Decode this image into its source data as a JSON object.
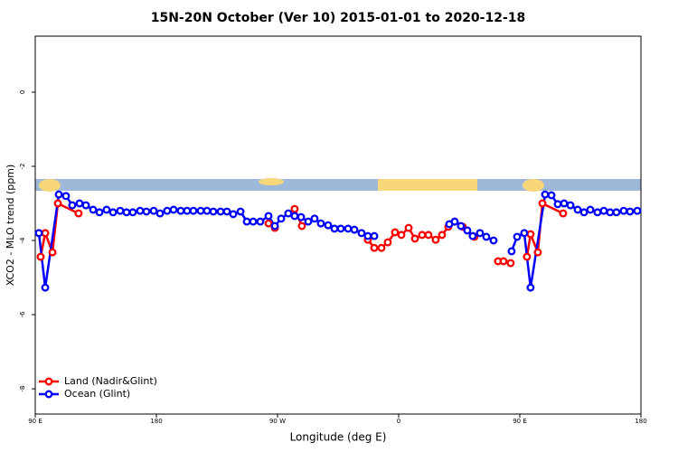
{
  "chart_data": {
    "type": "line",
    "title": "15N-20N October (Ver 10)   2015-01-01 to 2020-12-18",
    "x_label": "Longitude (deg E)",
    "y_label": "XCO2 - MLO trend (ppm)",
    "xlim": [
      90,
      540
    ],
    "xticks": [
      {
        "value": 90,
        "label": "90 E"
      },
      {
        "value": 180,
        "label": "180"
      },
      {
        "value": 270,
        "label": "90 W"
      },
      {
        "value": 360,
        "label": "0"
      },
      {
        "value": 450,
        "label": "90 E"
      },
      {
        "value": 540,
        "label": "180"
      }
    ],
    "ylim": [
      -8.68,
      1.51
    ],
    "yticks": [
      0,
      -2,
      -4,
      -6,
      -8
    ],
    "legend": "bottom-left",
    "series": [
      {
        "name": "Land (Nadir&Glint)",
        "color": "#ff0000",
        "x": [
          94,
          97.4,
          102.8,
          106.8,
          122.2,
          null,
          263.3,
          268,
          null,
          282.7,
          288.1,
          null,
          337.1,
          341.9,
          347.2,
          351.9,
          357.3,
          362,
          367.4,
          372.1,
          377.4,
          382.1,
          387.5,
          392.2,
          396.9,
          401.6,
          407.6,
          416.3,
          null,
          433.8,
          437.9,
          443.2,
          null,
          455.3,
          458,
          463.4,
          466.8,
          482.2
        ],
        "values": [
          -4.44,
          -3.8,
          -4.32,
          -3.0,
          -3.27,
          null,
          -3.54,
          -3.66,
          null,
          -3.15,
          -3.61,
          null,
          -3.98,
          -4.2,
          -4.2,
          -4.05,
          -3.78,
          -3.85,
          -3.66,
          -3.95,
          -3.85,
          -3.85,
          -3.98,
          -3.85,
          -3.63,
          -3.49,
          -3.63,
          -3.9,
          null,
          -4.56,
          -4.56,
          -4.61,
          null,
          -4.44,
          -3.83,
          -4.32,
          -3.0,
          -3.27
        ]
      },
      {
        "name": "Ocean (Glint)",
        "color": "#0000ff",
        "x": [
          92.7,
          97.4,
          107.5,
          112.8,
          117.5,
          122.9,
          127.6,
          133,
          137.7,
          143,
          147.8,
          153.1,
          157.8,
          162.5,
          167.9,
          172.6,
          178,
          182.7,
          188,
          192.8,
          198.1,
          202.8,
          207.5,
          212.9,
          217.6,
          222.3,
          227.7,
          232.4,
          237.1,
          242.5,
          247.2,
          251.9,
          257.2,
          263.3,
          268,
          272.7,
          278,
          282.7,
          287.5,
          292.8,
          297.5,
          302.2,
          307.6,
          312.3,
          317,
          322.4,
          327.1,
          332.4,
          337.1,
          341.9,
          null,
          397.6,
          401.6,
          406.3,
          411,
          415,
          420.4,
          425.1,
          430.5,
          null,
          443.9,
          448,
          453.3,
          458,
          468.8,
          473.5,
          478.2,
          482.9,
          487.6,
          493,
          497.7,
          502.4,
          507.7,
          512.4,
          517.1,
          521.8,
          527.2,
          531.9,
          537.3
        ],
        "values": [
          -3.8,
          -5.27,
          -2.76,
          -2.8,
          -3.05,
          -3.0,
          -3.05,
          -3.17,
          -3.24,
          -3.17,
          -3.24,
          -3.2,
          -3.24,
          -3.24,
          -3.2,
          -3.22,
          -3.2,
          -3.27,
          -3.2,
          -3.17,
          -3.2,
          -3.2,
          -3.2,
          -3.2,
          -3.2,
          -3.22,
          -3.22,
          -3.22,
          -3.29,
          -3.22,
          -3.49,
          -3.49,
          -3.49,
          -3.34,
          -3.61,
          -3.41,
          -3.27,
          -3.34,
          -3.37,
          -3.49,
          -3.41,
          -3.54,
          -3.59,
          -3.68,
          -3.68,
          -3.68,
          -3.71,
          -3.8,
          -3.88,
          -3.88,
          null,
          -3.56,
          -3.49,
          -3.61,
          -3.73,
          -3.88,
          -3.8,
          -3.9,
          -4.0,
          null,
          -4.29,
          -3.9,
          -3.8,
          -5.27,
          -2.76,
          -2.78,
          -3.02,
          -3.0,
          -3.05,
          -3.17,
          -3.24,
          -3.17,
          -3.24,
          -3.2,
          -3.24,
          -3.24,
          -3.2,
          -3.22,
          -3.2
        ]
      }
    ]
  }
}
